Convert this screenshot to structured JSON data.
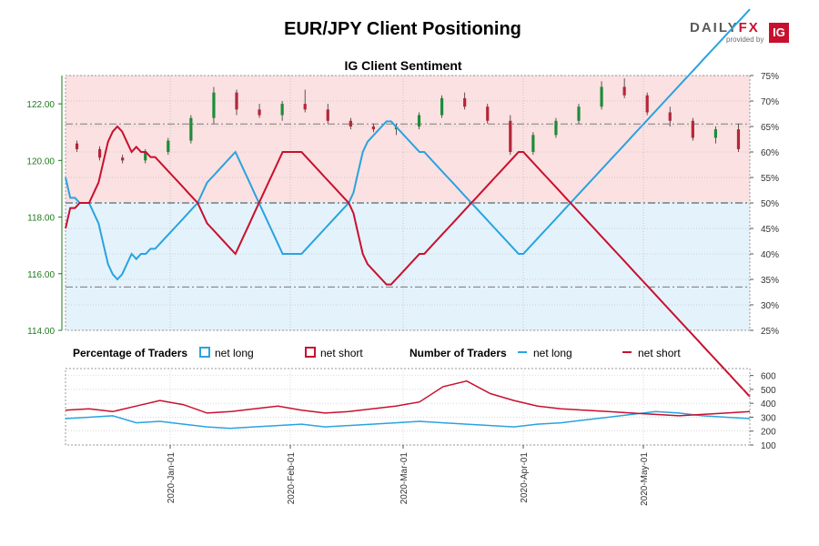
{
  "header": {
    "title": "EUR/JPY Client Positioning",
    "logo_text": "DAILYFX",
    "logo_sub": "provided by",
    "logo_badge": "IG"
  },
  "colors": {
    "long": "#29a3e0",
    "short": "#c8102e",
    "candle_up": "#1e8c3a",
    "candle_down": "#b5263b",
    "long_zone": "#e4f2fb",
    "short_zone": "#fbe1e1"
  },
  "chart_data": [
    {
      "type": "line",
      "title": "IG Client Sentiment",
      "x_labels": [
        "2020-Jan-01",
        "2020-Feb-01",
        "2020-Mar-01",
        "2020-Apr-01",
        "2020-May-01"
      ],
      "price_axis": {
        "ylim": [
          114,
          123
        ],
        "ticks": [
          "114.00",
          "116.00",
          "118.00",
          "120.00",
          "122.00"
        ]
      },
      "percent_axis": {
        "ylim": [
          25,
          75
        ],
        "ticks": [
          "25%",
          "30%",
          "35%",
          "40%",
          "45%",
          "50%",
          "55%",
          "60%",
          "65%",
          "70%",
          "75%"
        ]
      },
      "reference_lines": [
        50,
        65.5,
        33.5
      ],
      "series": [
        {
          "name": "net long",
          "values": [
            55,
            51,
            51,
            50,
            50,
            50,
            48,
            46,
            42,
            38,
            36,
            35,
            36,
            38,
            40,
            39,
            40,
            40,
            41,
            41,
            42,
            43,
            44,
            45,
            46,
            47,
            48,
            49,
            50,
            52,
            54,
            55,
            56,
            57,
            58,
            59,
            60,
            58,
            56,
            54,
            52,
            50,
            48,
            46,
            44,
            42,
            40,
            40,
            40,
            40,
            40,
            41,
            42,
            43,
            44,
            45,
            46,
            47,
            48,
            49,
            50,
            52,
            56,
            60,
            62,
            63,
            64,
            65,
            66,
            66,
            65,
            64,
            63,
            62,
            61,
            60,
            60,
            59,
            58,
            57,
            56,
            55,
            54,
            53,
            52,
            51,
            50,
            49,
            48,
            47,
            46,
            45,
            44,
            43,
            42,
            41,
            40,
            40,
            41,
            42,
            43,
            44,
            45,
            46,
            47,
            48,
            49,
            50,
            51,
            52,
            53,
            54,
            55,
            56,
            57,
            58,
            59,
            60,
            61,
            62,
            63,
            64,
            65,
            66,
            67,
            68,
            69,
            70,
            71,
            72,
            73,
            74,
            75,
            76,
            77,
            78,
            79,
            80,
            81,
            82,
            83,
            84,
            85,
            86,
            87,
            88
          ]
        },
        {
          "name": "net short",
          "values": [
            45,
            49,
            49,
            50,
            50,
            50,
            52,
            54,
            58,
            62,
            64,
            65,
            64,
            62,
            60,
            61,
            60,
            60,
            59,
            59,
            58,
            57,
            56,
            55,
            54,
            53,
            52,
            51,
            50,
            48,
            46,
            45,
            44,
            43,
            42,
            41,
            40,
            42,
            44,
            46,
            48,
            50,
            52,
            54,
            56,
            58,
            60,
            60,
            60,
            60,
            60,
            59,
            58,
            57,
            56,
            55,
            54,
            53,
            52,
            51,
            50,
            48,
            44,
            40,
            38,
            37,
            36,
            35,
            34,
            34,
            35,
            36,
            37,
            38,
            39,
            40,
            40,
            41,
            42,
            43,
            44,
            45,
            46,
            47,
            48,
            49,
            50,
            51,
            52,
            53,
            54,
            55,
            56,
            57,
            58,
            59,
            60,
            60,
            59,
            58,
            57,
            56,
            55,
            54,
            53,
            52,
            51,
            50,
            49,
            48,
            47,
            46,
            45,
            44,
            43,
            42,
            41,
            40,
            39,
            38,
            37,
            36,
            35,
            34,
            33,
            32,
            31,
            30,
            29,
            28,
            27,
            26,
            25,
            24,
            23,
            22,
            21,
            20,
            19,
            18,
            17,
            16,
            15,
            14,
            13,
            12
          ]
        }
      ],
      "candles": [
        [
          120.6,
          120.7,
          120.3,
          120.4
        ],
        [
          120.4,
          120.5,
          120.0,
          120.1
        ],
        [
          120.1,
          120.2,
          119.9,
          120.0
        ],
        [
          120.0,
          120.4,
          119.9,
          120.3
        ],
        [
          120.3,
          120.8,
          120.2,
          120.7
        ],
        [
          120.7,
          121.6,
          120.6,
          121.5
        ],
        [
          121.5,
          122.6,
          121.3,
          122.4
        ],
        [
          122.4,
          122.5,
          121.6,
          121.8
        ],
        [
          121.8,
          122.0,
          121.5,
          121.6
        ],
        [
          121.6,
          122.1,
          121.4,
          122.0
        ],
        [
          122.0,
          122.5,
          121.7,
          121.8
        ],
        [
          121.8,
          122.0,
          121.3,
          121.4
        ],
        [
          121.4,
          121.5,
          121.1,
          121.2
        ],
        [
          121.2,
          121.3,
          121.0,
          121.1
        ],
        [
          121.1,
          121.3,
          120.9,
          121.2
        ],
        [
          121.2,
          121.7,
          121.1,
          121.6
        ],
        [
          121.6,
          122.3,
          121.5,
          122.2
        ],
        [
          122.2,
          122.4,
          121.8,
          121.9
        ],
        [
          121.9,
          122.0,
          121.3,
          121.4
        ],
        [
          121.4,
          121.6,
          120.2,
          120.3
        ],
        [
          120.3,
          121.0,
          120.2,
          120.9
        ],
        [
          120.9,
          121.5,
          120.8,
          121.4
        ],
        [
          121.4,
          122.0,
          121.3,
          121.9
        ],
        [
          121.9,
          122.8,
          121.8,
          122.6
        ],
        [
          122.6,
          122.9,
          122.2,
          122.3
        ],
        [
          122.3,
          122.4,
          121.6,
          121.7
        ],
        [
          121.7,
          121.9,
          121.2,
          121.4
        ],
        [
          121.4,
          121.5,
          120.7,
          120.8
        ],
        [
          120.8,
          121.2,
          120.6,
          121.1
        ],
        [
          121.1,
          121.3,
          120.3,
          120.4
        ]
      ]
    },
    {
      "type": "line",
      "title": "Number of Traders",
      "y_axis": {
        "ylim": [
          100,
          650
        ],
        "ticks": [
          "100",
          "200",
          "300",
          "400",
          "500",
          "600"
        ]
      },
      "series": [
        {
          "name": "net long",
          "values": [
            290,
            300,
            310,
            260,
            270,
            250,
            230,
            220,
            230,
            240,
            250,
            230,
            240,
            250,
            260,
            270,
            260,
            250,
            240,
            230,
            250,
            260,
            280,
            300,
            320,
            340,
            330,
            310,
            300,
            290
          ]
        },
        {
          "name": "net short",
          "values": [
            350,
            360,
            340,
            380,
            420,
            390,
            330,
            340,
            360,
            380,
            350,
            330,
            340,
            360,
            380,
            410,
            520,
            560,
            470,
            420,
            380,
            360,
            350,
            340,
            330,
            320,
            310,
            320,
            330,
            340
          ]
        }
      ]
    }
  ],
  "legend": {
    "pct_heading": "Percentage of Traders",
    "pct_long": "net long",
    "pct_short": "net short",
    "num_heading": "Number of Traders",
    "num_long": "net long",
    "num_short": "net short"
  }
}
